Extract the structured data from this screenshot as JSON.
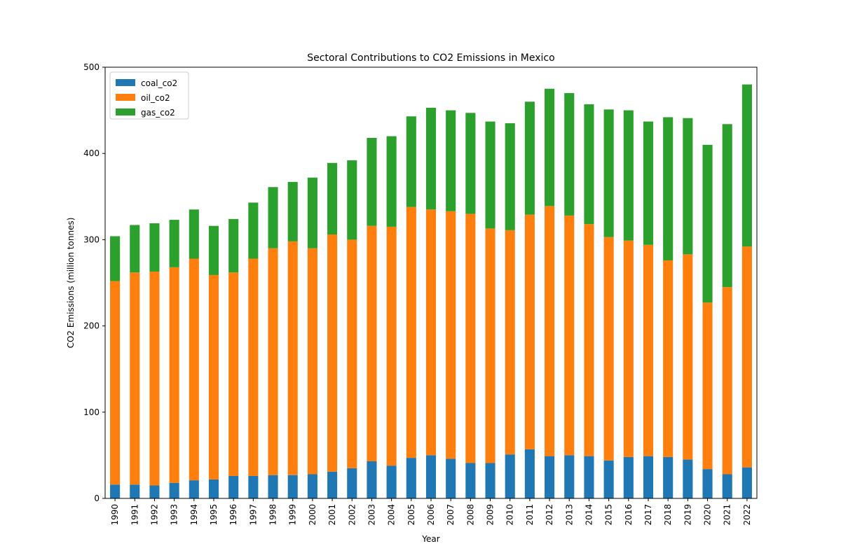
{
  "chart_data": {
    "type": "stacked-bar",
    "title": "Sectoral Contributions to CO2 Emissions in Mexico",
    "xlabel": "Year",
    "ylabel": "CO2 Emissions (million tonnes)",
    "ylim": [
      0,
      500
    ],
    "yticks": [
      0,
      100,
      200,
      300,
      400,
      500
    ],
    "legend_position": "upper-left",
    "categories": [
      "1990",
      "1991",
      "1992",
      "1993",
      "1994",
      "1995",
      "1996",
      "1997",
      "1998",
      "1999",
      "2000",
      "2001",
      "2002",
      "2003",
      "2004",
      "2005",
      "2006",
      "2007",
      "2008",
      "2009",
      "2010",
      "2011",
      "2012",
      "2013",
      "2014",
      "2015",
      "2016",
      "2017",
      "2018",
      "2019",
      "2020",
      "2021",
      "2022"
    ],
    "series": [
      {
        "name": "coal_co2",
        "color": "#1f77b4",
        "values": [
          16,
          16,
          15,
          18,
          21,
          22,
          26,
          26,
          27,
          27,
          28,
          31,
          35,
          43,
          38,
          47,
          50,
          46,
          41,
          41,
          51,
          57,
          49,
          50,
          49,
          44,
          48,
          49,
          48,
          45,
          34,
          28,
          36
        ]
      },
      {
        "name": "oil_co2",
        "color": "#ff7f0e",
        "values": [
          236,
          246,
          248,
          250,
          257,
          237,
          236,
          252,
          263,
          271,
          262,
          275,
          265,
          273,
          277,
          291,
          285,
          287,
          289,
          272,
          260,
          272,
          290,
          278,
          269,
          259,
          251,
          245,
          228,
          238,
          193,
          217,
          256
        ]
      },
      {
        "name": "gas_co2",
        "color": "#2ca02c",
        "values": [
          52,
          55,
          56,
          55,
          57,
          57,
          62,
          65,
          71,
          69,
          82,
          83,
          92,
          102,
          105,
          105,
          118,
          117,
          117,
          124,
          124,
          131,
          136,
          142,
          139,
          148,
          151,
          143,
          166,
          158,
          183,
          189,
          188
        ]
      }
    ]
  }
}
